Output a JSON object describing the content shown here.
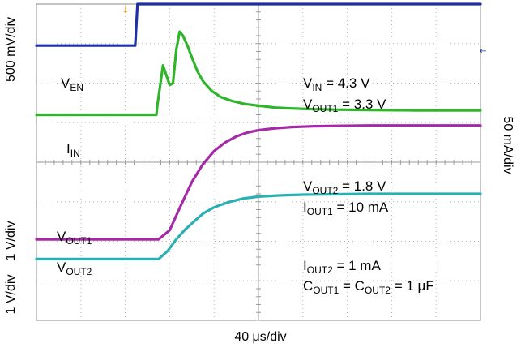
{
  "chart_data": {
    "type": "line",
    "title": "",
    "xlabel": "40 μs/div",
    "time_unit": "μs",
    "x_per_div": 40,
    "divisions": {
      "x": 10,
      "y": 8
    },
    "grid": true,
    "left_axis_labels": {
      "top": "500 mV/div",
      "middle": "1 V/div",
      "bottom": "1 V/div"
    },
    "right_axis_label": "50 mA/div",
    "trigger_marker": "↓",
    "series": [
      {
        "name": "VEN",
        "label_main": "V",
        "label_sub": "EN",
        "color": "#1f2fa6",
        "x": [
          0,
          85,
          89,
          91,
          400
        ],
        "div": [
          6.95,
          6.95,
          6.95,
          8.0,
          8.0
        ]
      },
      {
        "name": "IIN",
        "label_main": "I",
        "label_sub": "IN",
        "color": "#2fb52a",
        "x": [
          0,
          108,
          109,
          114,
          117,
          120,
          123,
          126,
          129,
          132,
          136,
          140,
          145,
          150,
          158,
          166,
          176,
          188,
          200,
          215,
          230,
          250,
          270,
          300,
          340,
          400
        ],
        "div": [
          5.2,
          5.2,
          5.45,
          6.45,
          6.2,
          5.95,
          6.0,
          6.85,
          7.3,
          7.2,
          6.95,
          6.65,
          6.3,
          6.05,
          5.8,
          5.65,
          5.55,
          5.47,
          5.43,
          5.38,
          5.36,
          5.34,
          5.33,
          5.32,
          5.31,
          5.31
        ]
      },
      {
        "name": "VOUT1",
        "label_main": "V",
        "label_sub": "OUT1",
        "color": "#a52aa8",
        "x": [
          0,
          110,
          120,
          130,
          140,
          150,
          160,
          170,
          180,
          190,
          200,
          215,
          230,
          250,
          270,
          300,
          340,
          400
        ],
        "div": [
          2.05,
          2.05,
          2.28,
          2.9,
          3.5,
          3.95,
          4.28,
          4.5,
          4.65,
          4.75,
          4.81,
          4.86,
          4.89,
          4.91,
          4.92,
          4.93,
          4.93,
          4.93
        ]
      },
      {
        "name": "VOUT2",
        "label_main": "V",
        "label_sub": "OUT2",
        "color": "#2ab0b3",
        "x": [
          0,
          110,
          118,
          126,
          134,
          142,
          150,
          160,
          172,
          186,
          200,
          220,
          240,
          270,
          300,
          340,
          400
        ],
        "div": [
          1.55,
          1.55,
          1.75,
          2.05,
          2.3,
          2.5,
          2.7,
          2.86,
          2.98,
          3.08,
          3.13,
          3.16,
          3.18,
          3.19,
          3.2,
          3.2,
          3.2
        ]
      }
    ],
    "annotations": [
      [
        {
          "t": "V"
        },
        {
          "sub": "IN"
        },
        {
          "t": " = 4.3 V"
        }
      ],
      [
        {
          "t": "V"
        },
        {
          "sub": "OUT1"
        },
        {
          "t": " = 3.3 V"
        }
      ],
      [
        {
          "t": "V"
        },
        {
          "sub": "OUT2"
        },
        {
          "t": " = 1.8 V"
        }
      ],
      [
        {
          "t": "I"
        },
        {
          "sub": "OUT1"
        },
        {
          "t": " = 10 mA"
        }
      ],
      [
        {
          "t": "I"
        },
        {
          "sub": "OUT2"
        },
        {
          "t": " = 1 mA"
        }
      ],
      [
        {
          "t": "C"
        },
        {
          "sub": "OUT1"
        },
        {
          "t": " = C"
        },
        {
          "sub": "OUT2"
        },
        {
          "t": " = 1 μF"
        }
      ]
    ]
  }
}
